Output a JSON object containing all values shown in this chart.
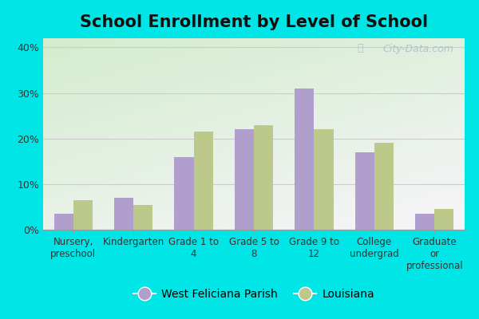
{
  "title": "School Enrollment by Level of School",
  "categories": [
    "Nursery,\npreschool",
    "Kindergarten",
    "Grade 1 to\n4",
    "Grade 5 to\n8",
    "Grade 9 to\n12",
    "College\nundergrad",
    "Graduate\nor\nprofessional"
  ],
  "parish_values": [
    3.5,
    7.0,
    16.0,
    22.0,
    31.0,
    17.0,
    3.5
  ],
  "louisiana_values": [
    6.5,
    5.5,
    21.5,
    23.0,
    22.0,
    19.0,
    4.5
  ],
  "parish_color": "#b09fcc",
  "louisiana_color": "#bcc98a",
  "parish_label": "West Feliciana Parish",
  "louisiana_label": "Louisiana",
  "ylim": [
    0,
    42
  ],
  "yticks": [
    0,
    10,
    20,
    30,
    40
  ],
  "ytick_labels": [
    "0%",
    "10%",
    "20%",
    "30%",
    "40%"
  ],
  "fig_bg_color": "#00e5e5",
  "plot_bg_color": "#e8f5ee",
  "grid_color": "#cccccc",
  "watermark": "City-Data.com",
  "title_fontsize": 15,
  "label_fontsize": 8.5,
  "legend_fontsize": 10,
  "bar_width": 0.32
}
